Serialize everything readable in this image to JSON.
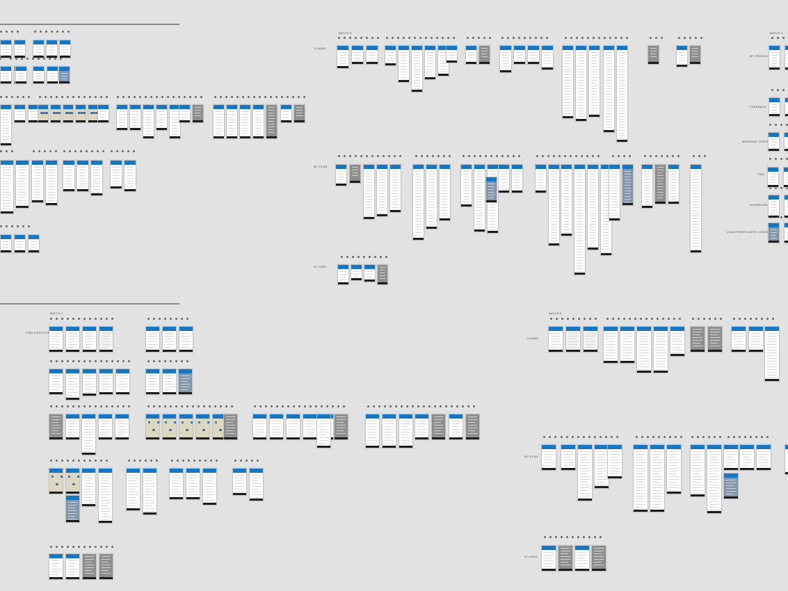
{
  "sections": {
    "batch3": "BATCH 3",
    "batch4": "BATCH 4",
    "batch2": "BATCH 2",
    "batch5": "BATCH 5"
  },
  "rows": {
    "claims_top": "CLAIMS",
    "my_plan_top": "MY PLAN",
    "id_card_top": "ID CARD",
    "my_profile": "MY PROFILE",
    "feedback": "FEEDBACK",
    "message_center": "MESSAGE CENTER",
    "faq": "FAQ",
    "nurseline": "NURSELINE",
    "unauthenticated": "UNAUTHENTICATED CONTENT",
    "find_a_doctor": "FIND A DOCTOR",
    "claims_bottom": "CLAIMS",
    "my_plan_bottom": "MY PLAN",
    "id_card_bottom": "ID CARD"
  },
  "colors": {
    "header": "#1377c9",
    "background": "#e2e2e2"
  }
}
